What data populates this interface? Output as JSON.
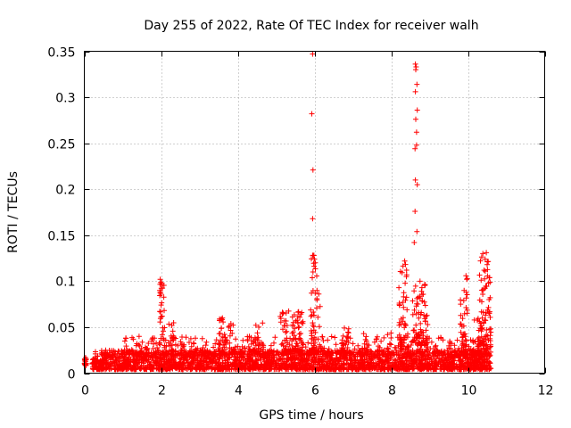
{
  "chart_data": {
    "type": "scatter",
    "title": "Day 255 of 2022, Rate Of TEC Index for receiver walh",
    "xlabel": "GPS time / hours",
    "ylabel": "ROTI / TECUs",
    "xlim": [
      0,
      12
    ],
    "ylim": [
      0,
      0.35
    ],
    "x_ticks": [
      0,
      2,
      4,
      6,
      8,
      10,
      12
    ],
    "x_tick_labels": [
      "0",
      "2",
      "4",
      "6",
      "8",
      "10",
      "12"
    ],
    "y_ticks": [
      0,
      0.05,
      0.1,
      0.15,
      0.2,
      0.25,
      0.3,
      0.35
    ],
    "y_tick_labels": [
      "0",
      "0.05",
      "0.1",
      "0.15",
      "0.2",
      "0.25",
      "0.3",
      "0.35"
    ],
    "grid": true,
    "marker": "+",
    "marker_color": "#ff0000",
    "series": [
      {
        "name": "ROTI",
        "clusters": [
          {
            "x_from": 0.0,
            "x_to": 0.05,
            "y_low": 0.008,
            "y_high": 0.017,
            "count": 25
          },
          {
            "x_from": 0.2,
            "x_to": 10.6,
            "y_low": 0.004,
            "y_high": 0.025,
            "count": 2600
          },
          {
            "x_from": 1.0,
            "x_to": 10.6,
            "y_low": 0.02,
            "y_high": 0.04,
            "count": 420
          },
          {
            "x_from": 1.95,
            "x_to": 2.1,
            "y_low": 0.03,
            "y_high": 0.1,
            "count": 30
          },
          {
            "x_from": 2.2,
            "x_to": 2.35,
            "y_low": 0.02,
            "y_high": 0.055,
            "count": 20
          },
          {
            "x_from": 3.5,
            "x_to": 3.7,
            "y_low": 0.02,
            "y_high": 0.06,
            "count": 25
          },
          {
            "x_from": 3.75,
            "x_to": 3.95,
            "y_low": 0.02,
            "y_high": 0.055,
            "count": 20
          },
          {
            "x_from": 4.4,
            "x_to": 4.7,
            "y_low": 0.02,
            "y_high": 0.055,
            "count": 25
          },
          {
            "x_from": 5.1,
            "x_to": 5.35,
            "y_low": 0.02,
            "y_high": 0.07,
            "count": 30
          },
          {
            "x_from": 5.4,
            "x_to": 5.7,
            "y_low": 0.02,
            "y_high": 0.078,
            "count": 45
          },
          {
            "x_from": 5.9,
            "x_to": 6.15,
            "y_low": 0.02,
            "y_high": 0.13,
            "count": 60
          },
          {
            "x_from": 6.7,
            "x_to": 6.9,
            "y_low": 0.02,
            "y_high": 0.058,
            "count": 25
          },
          {
            "x_from": 7.2,
            "x_to": 7.4,
            "y_low": 0.02,
            "y_high": 0.048,
            "count": 15
          },
          {
            "x_from": 7.9,
            "x_to": 8.0,
            "y_low": 0.02,
            "y_high": 0.045,
            "count": 12
          },
          {
            "x_from": 8.2,
            "x_to": 8.45,
            "y_low": 0.02,
            "y_high": 0.12,
            "count": 55
          },
          {
            "x_from": 8.55,
            "x_to": 8.95,
            "y_low": 0.03,
            "y_high": 0.1,
            "count": 80
          },
          {
            "x_from": 9.8,
            "x_to": 10.0,
            "y_low": 0.02,
            "y_high": 0.105,
            "count": 35
          },
          {
            "x_from": 10.1,
            "x_to": 10.3,
            "y_low": 0.02,
            "y_high": 0.06,
            "count": 25
          },
          {
            "x_from": 10.3,
            "x_to": 10.6,
            "y_low": 0.02,
            "y_high": 0.13,
            "count": 90
          }
        ],
        "points": [
          [
            0.02,
            0.013
          ],
          [
            0.05,
            0.015
          ],
          [
            1.98,
            0.102
          ],
          [
            2.02,
            0.098
          ],
          [
            2.03,
            0.062
          ],
          [
            3.6,
            0.06
          ],
          [
            5.95,
            0.347
          ],
          [
            5.93,
            0.282
          ],
          [
            5.96,
            0.221
          ],
          [
            5.95,
            0.168
          ],
          [
            5.98,
            0.128
          ],
          [
            6.0,
            0.124
          ],
          [
            6.02,
            0.12
          ],
          [
            5.96,
            0.11
          ],
          [
            8.35,
            0.122
          ],
          [
            8.4,
            0.112
          ],
          [
            8.63,
            0.336
          ],
          [
            8.65,
            0.333
          ],
          [
            8.64,
            0.33
          ],
          [
            8.67,
            0.314
          ],
          [
            8.63,
            0.306
          ],
          [
            8.68,
            0.286
          ],
          [
            8.64,
            0.276
          ],
          [
            8.66,
            0.262
          ],
          [
            8.66,
            0.248
          ],
          [
            8.62,
            0.244
          ],
          [
            8.63,
            0.21
          ],
          [
            8.68,
            0.205
          ],
          [
            8.62,
            0.176
          ],
          [
            8.67,
            0.154
          ],
          [
            8.6,
            0.142
          ],
          [
            8.75,
            0.1
          ],
          [
            8.8,
            0.093
          ],
          [
            9.95,
            0.106
          ],
          [
            9.97,
            0.102
          ],
          [
            9.9,
            0.09
          ],
          [
            10.48,
            0.131
          ],
          [
            10.45,
            0.124
          ],
          [
            10.5,
            0.118
          ],
          [
            10.42,
            0.112
          ],
          [
            10.55,
            0.08
          ],
          [
            10.58,
            0.082
          ]
        ]
      }
    ]
  }
}
